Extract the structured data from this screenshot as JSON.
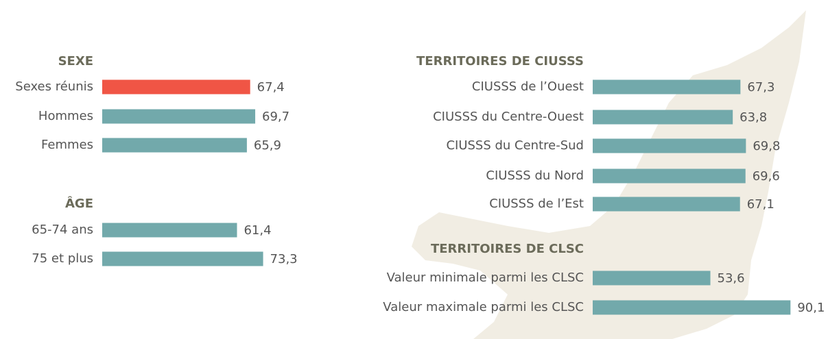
{
  "chart_data": [
    {
      "type": "bar",
      "orientation": "horizontal",
      "title": "SEXE",
      "categories": [
        "Sexes réunis",
        "Hommes",
        "Femmes"
      ],
      "values": [
        67.4,
        69.7,
        65.9
      ],
      "value_labels": [
        "67,4",
        "69,7",
        "65,9"
      ],
      "colors": [
        "#f05545",
        "#72a9ab",
        "#72a9ab"
      ]
    },
    {
      "type": "bar",
      "orientation": "horizontal",
      "title": "ÂGE",
      "categories": [
        "65-74 ans",
        "75 et plus"
      ],
      "values": [
        61.4,
        73.3
      ],
      "value_labels": [
        "61,4",
        "73,3"
      ],
      "colors": [
        "#72a9ab",
        "#72a9ab"
      ]
    },
    {
      "type": "bar",
      "orientation": "horizontal",
      "title": "TERRITOIRES DE CIUSSS",
      "categories": [
        "CIUSSS de l’Ouest",
        "CIUSSS du Centre-Ouest",
        "CIUSSS du Centre-Sud",
        "CIUSSS du Nord",
        "CIUSSS de l’Est"
      ],
      "values": [
        67.3,
        63.8,
        69.8,
        69.6,
        67.1
      ],
      "value_labels": [
        "67,3",
        "63,8",
        "69,8",
        "69,6",
        "67,1"
      ],
      "colors": [
        "#72a9ab",
        "#72a9ab",
        "#72a9ab",
        "#72a9ab",
        "#72a9ab"
      ]
    },
    {
      "type": "bar",
      "orientation": "horizontal",
      "title": "TERRITOIRES DE CLSC",
      "categories": [
        "Valeur minimale parmi les CLSC",
        "Valeur maximale parmi les CLSC"
      ],
      "values": [
        53.6,
        90.1
      ],
      "value_labels": [
        "53,6",
        "90,1"
      ],
      "colors": [
        "#72a9ab",
        "#72a9ab"
      ]
    }
  ]
}
